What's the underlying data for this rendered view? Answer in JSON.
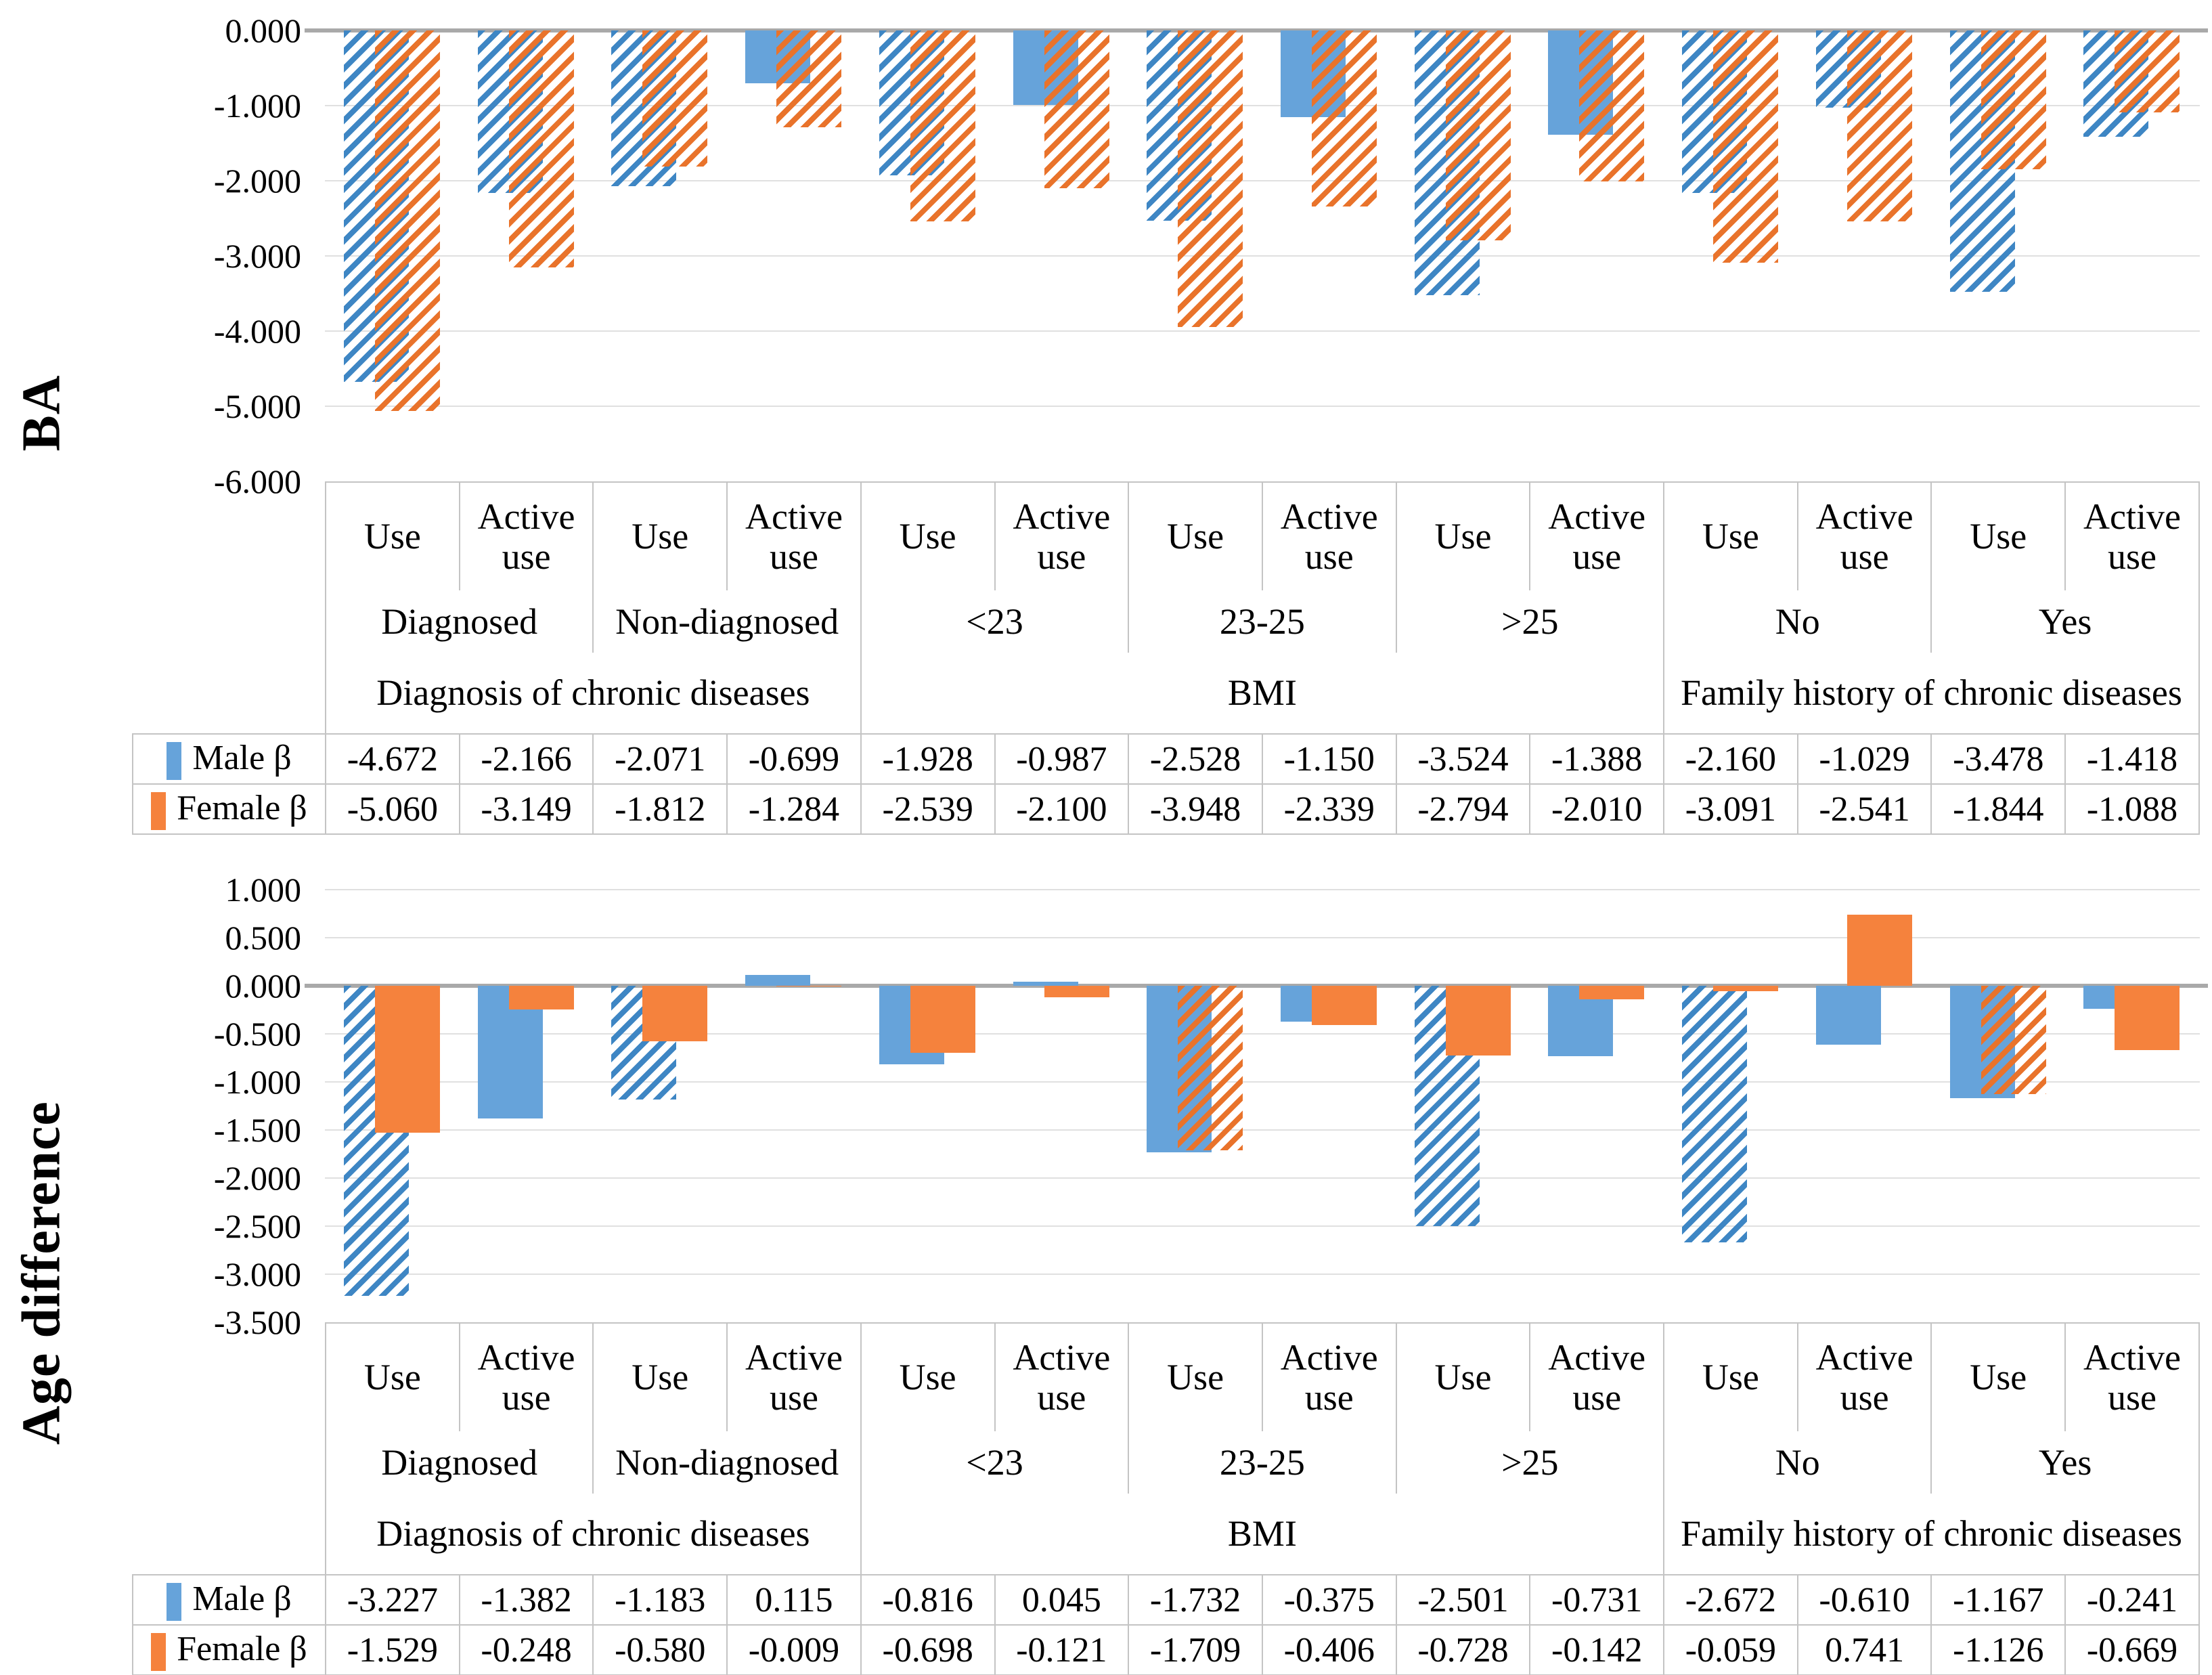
{
  "figure": {
    "background": "#ffffff",
    "border_color": "#c4c4c4",
    "gridline_color": "#e0e0e0",
    "zeroline_color": "#a9a9a9"
  },
  "chart_data": [
    {
      "type": "bar",
      "axis_title": "BA",
      "ylim": [
        -6,
        0
      ],
      "tick_step": 1,
      "y_ticks": [
        "0.000",
        "-1.000",
        "-2.000",
        "-3.000",
        "-4.000",
        "-5.000",
        "-6.000"
      ],
      "grid": true,
      "legend_position": "data-table-left",
      "categories_use": [
        "Use",
        "Active use",
        "Use",
        "Active use",
        "Use",
        "Active use",
        "Use",
        "Active use",
        "Use",
        "Active use",
        "Use",
        "Active use",
        "Use",
        "Active use"
      ],
      "categories_sub": [
        {
          "label": "Diagnosed",
          "span": 2
        },
        {
          "label": "Non-diagnosed",
          "span": 2
        },
        {
          "label": "<23",
          "span": 2
        },
        {
          "label": "23-25",
          "span": 2
        },
        {
          "label": ">25",
          "span": 2
        },
        {
          "label": "No",
          "span": 2
        },
        {
          "label": "Yes",
          "span": 2
        }
      ],
      "categories_group": [
        {
          "label": "Diagnosis of chronic diseases",
          "span": 4
        },
        {
          "label": "BMI",
          "span": 6
        },
        {
          "label": "Family history of chronic diseases",
          "span": 4
        }
      ],
      "series": [
        {
          "name": "Male β",
          "color_solid": "#66a3da",
          "color_stripe": "#3e86c4",
          "values": [
            -4.672,
            -2.166,
            -2.071,
            -0.699,
            -1.928,
            -0.987,
            -2.528,
            -1.15,
            -3.524,
            -1.388,
            -2.16,
            -1.029,
            -3.478,
            -1.418
          ],
          "hatched": [
            true,
            true,
            true,
            false,
            true,
            false,
            true,
            false,
            true,
            false,
            true,
            true,
            true,
            true
          ]
        },
        {
          "name": "Female β",
          "color_solid": "#f5823d",
          "color_stripe": "#e9732b",
          "values": [
            -5.06,
            -3.149,
            -1.812,
            -1.284,
            -2.539,
            -2.1,
            -3.948,
            -2.339,
            -2.794,
            -2.01,
            -3.091,
            -2.541,
            -1.844,
            -1.088
          ],
          "hatched": [
            true,
            true,
            true,
            true,
            true,
            true,
            true,
            true,
            true,
            true,
            true,
            true,
            true,
            true
          ]
        }
      ]
    },
    {
      "type": "bar",
      "axis_title": "Age difference",
      "ylim": [
        -3.5,
        1
      ],
      "tick_step": 0.5,
      "y_ticks": [
        "1.000",
        "0.500",
        "0.000",
        "-0.500",
        "-1.000",
        "-1.500",
        "-2.000",
        "-2.500",
        "-3.000",
        "-3.500"
      ],
      "grid": true,
      "legend_position": "data-table-left",
      "categories_use": [
        "Use",
        "Active use",
        "Use",
        "Active use",
        "Use",
        "Active use",
        "Use",
        "Active use",
        "Use",
        "Active use",
        "Use",
        "Active use",
        "Use",
        "Active use"
      ],
      "categories_sub": [
        {
          "label": "Diagnosed",
          "span": 2
        },
        {
          "label": "Non-diagnosed",
          "span": 2
        },
        {
          "label": "<23",
          "span": 2
        },
        {
          "label": "23-25",
          "span": 2
        },
        {
          "label": ">25",
          "span": 2
        },
        {
          "label": "No",
          "span": 2
        },
        {
          "label": "Yes",
          "span": 2
        }
      ],
      "categories_group": [
        {
          "label": "Diagnosis of chronic diseases",
          "span": 4
        },
        {
          "label": "BMI",
          "span": 6
        },
        {
          "label": "Family history of chronic diseases",
          "span": 4
        }
      ],
      "series": [
        {
          "name": "Male β",
          "color_solid": "#66a3da",
          "color_stripe": "#3e86c4",
          "values": [
            -3.227,
            -1.382,
            -1.183,
            0.115,
            -0.816,
            0.045,
            -1.732,
            -0.375,
            -2.501,
            -0.731,
            -2.672,
            -0.61,
            -1.167,
            -0.241
          ],
          "hatched": [
            true,
            false,
            true,
            false,
            false,
            false,
            false,
            false,
            true,
            false,
            true,
            false,
            false,
            false
          ]
        },
        {
          "name": "Female β",
          "color_solid": "#f5823d",
          "color_stripe": "#e9732b",
          "values": [
            -1.529,
            -0.248,
            -0.58,
            -0.009,
            -0.698,
            -0.121,
            -1.709,
            -0.406,
            -0.728,
            -0.142,
            -0.059,
            0.741,
            -1.126,
            -0.669
          ],
          "hatched": [
            false,
            false,
            false,
            false,
            false,
            false,
            true,
            false,
            false,
            false,
            false,
            false,
            true,
            false
          ]
        }
      ]
    }
  ]
}
